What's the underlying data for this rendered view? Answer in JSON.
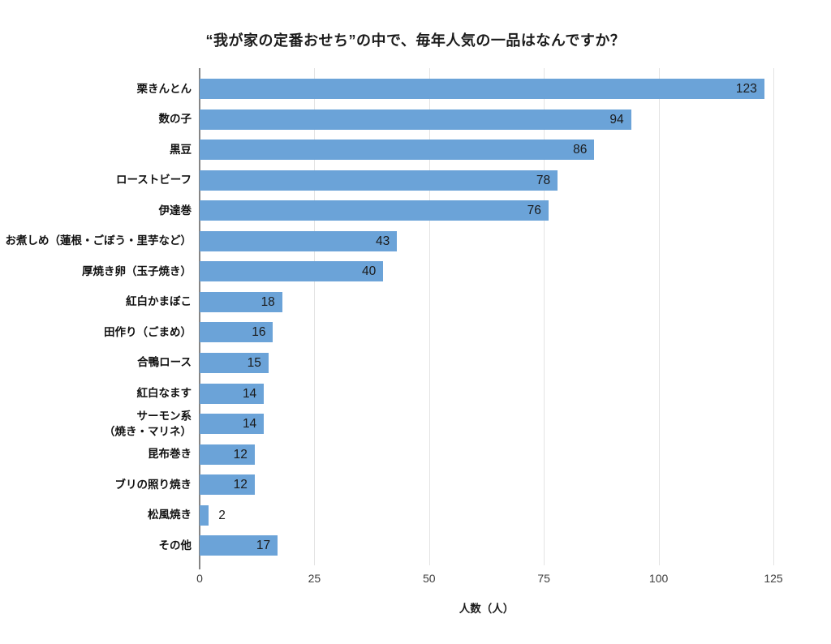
{
  "chart_data": {
    "type": "bar",
    "orientation": "horizontal",
    "title": "“我が家の定番おせち”の中で、毎年人気の一品はなんですか？",
    "xlabel": "人数（人）",
    "ylabel": "",
    "categories": [
      "栗きんとん",
      "数の子",
      "黒豆",
      "ローストビーフ",
      "伊達巻",
      "お煮しめ（蓮根・ごぼう・里芋など）",
      "厚焼き卵（玉子焼き）",
      "紅白かまぼこ",
      "田作り（ごまめ）",
      "合鴨ロース",
      "紅白なます",
      "サーモン系\n（焼き・マリネ）",
      "昆布巻き",
      "ブリの照り焼き",
      "松風焼き",
      "その他"
    ],
    "values": [
      123,
      94,
      86,
      78,
      76,
      43,
      40,
      18,
      16,
      15,
      14,
      14,
      12,
      12,
      2,
      17
    ],
    "xlim": [
      0,
      125
    ],
    "xticks": [
      0,
      25,
      50,
      75,
      100,
      125
    ],
    "grid": true,
    "legend": "none",
    "colors": {
      "bar": "#6BA3D8",
      "gridline": "#e3e3e3",
      "axis_line": "#858585",
      "title_text": "#1b1b1b",
      "category_text": "#111111",
      "value_text": "#1a1a1a",
      "tick_text": "#3d3d3d",
      "background": "#ffffff"
    }
  }
}
